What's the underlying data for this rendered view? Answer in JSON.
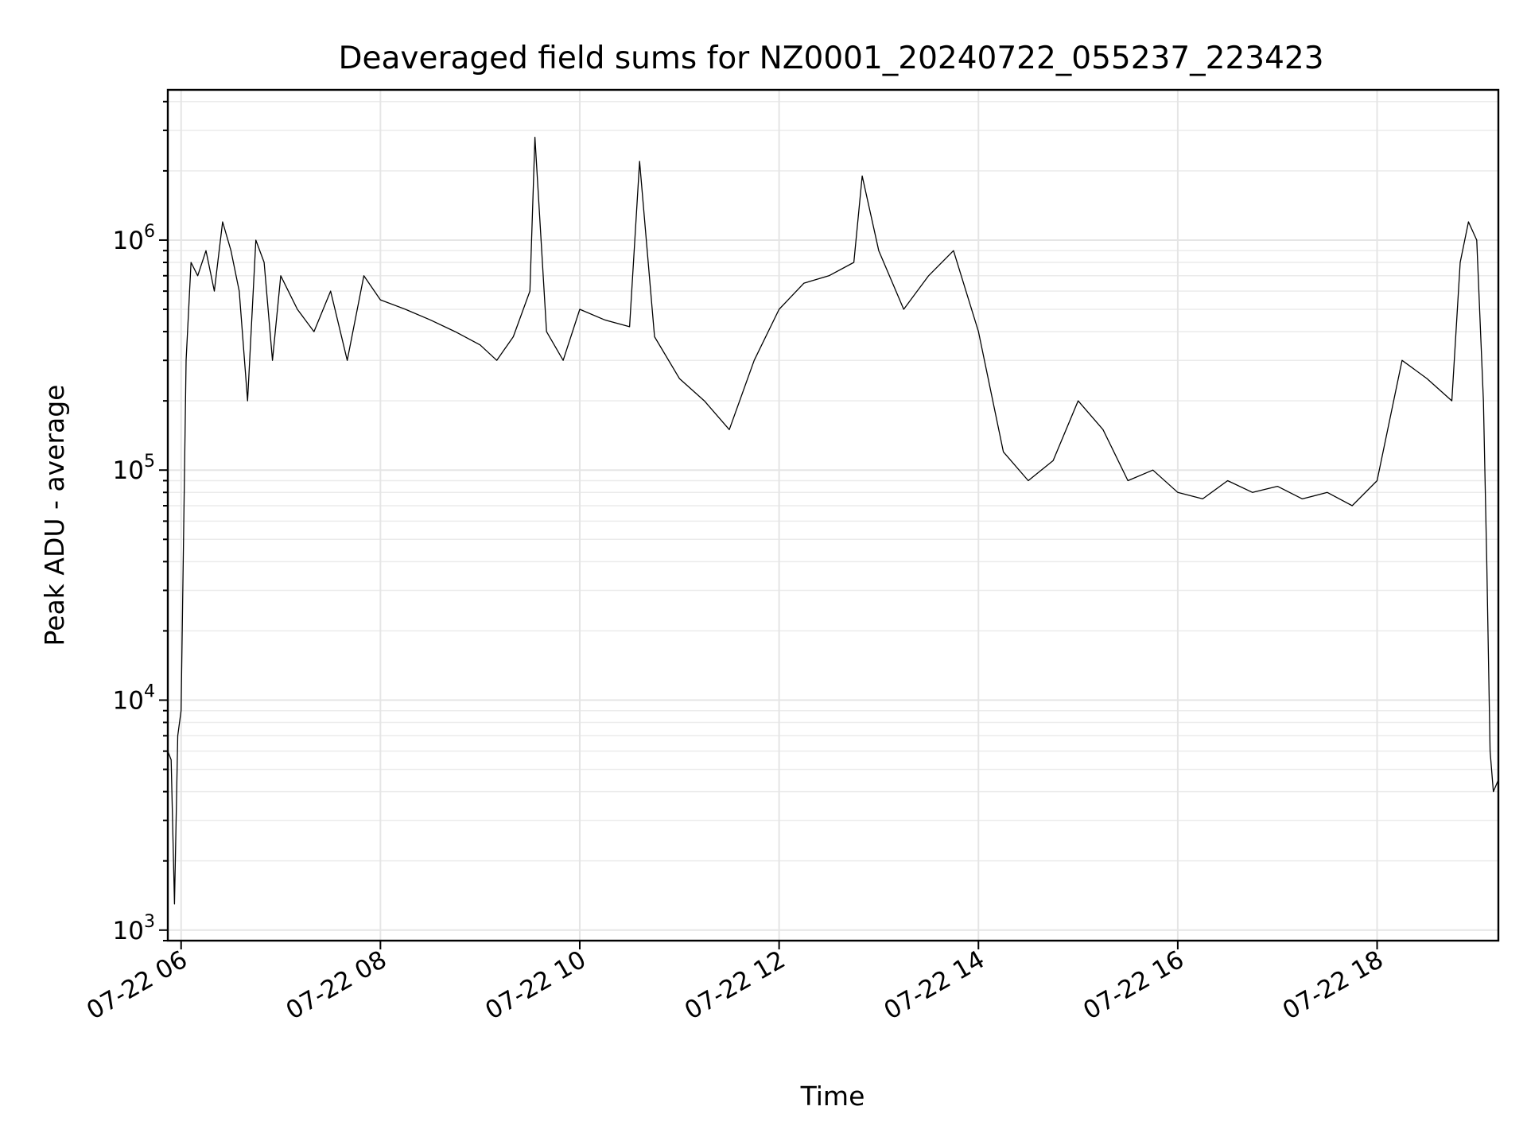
{
  "chart_data": {
    "type": "line",
    "title": "Deaveraged field sums for NZ0001_20240722_055237_223423",
    "xlabel": "Time",
    "ylabel": "Peak ADU - average",
    "yscale": "log",
    "xlim": [
      "2024-07-22 05:52",
      "2024-07-22 19:13"
    ],
    "ylim": [
      900,
      4500000
    ],
    "x_ticks": [
      "07-22 06",
      "07-22 08",
      "07-22 10",
      "07-22 12",
      "07-22 14",
      "07-22 16",
      "07-22 18"
    ],
    "y_ticks": [
      {
        "base": "10",
        "exp": "3",
        "value": 1000
      },
      {
        "base": "10",
        "exp": "4",
        "value": 10000
      },
      {
        "base": "10",
        "exp": "5",
        "value": 100000
      },
      {
        "base": "10",
        "exp": "6",
        "value": 1000000
      }
    ],
    "grid": true,
    "legend": "none",
    "line_color": "#000000",
    "series": [
      {
        "x": [
          "2024-07-22 05:52",
          "2024-07-22 05:54",
          "2024-07-22 05:56",
          "2024-07-22 05:58",
          "2024-07-22 06:00",
          "2024-07-22 06:03",
          "2024-07-22 06:06",
          "2024-07-22 06:10",
          "2024-07-22 06:15",
          "2024-07-22 06:20",
          "2024-07-22 06:25",
          "2024-07-22 06:30",
          "2024-07-22 06:35",
          "2024-07-22 06:40",
          "2024-07-22 06:45",
          "2024-07-22 06:50",
          "2024-07-22 06:55",
          "2024-07-22 07:00",
          "2024-07-22 07:10",
          "2024-07-22 07:20",
          "2024-07-22 07:30",
          "2024-07-22 07:40",
          "2024-07-22 07:50",
          "2024-07-22 08:00",
          "2024-07-22 08:15",
          "2024-07-22 08:30",
          "2024-07-22 08:45",
          "2024-07-22 09:00",
          "2024-07-22 09:10",
          "2024-07-22 09:20",
          "2024-07-22 09:30",
          "2024-07-22 09:33",
          "2024-07-22 09:40",
          "2024-07-22 09:50",
          "2024-07-22 10:00",
          "2024-07-22 10:15",
          "2024-07-22 10:30",
          "2024-07-22 10:36",
          "2024-07-22 10:45",
          "2024-07-22 11:00",
          "2024-07-22 11:15",
          "2024-07-22 11:30",
          "2024-07-22 11:45",
          "2024-07-22 12:00",
          "2024-07-22 12:15",
          "2024-07-22 12:30",
          "2024-07-22 12:45",
          "2024-07-22 12:50",
          "2024-07-22 13:00",
          "2024-07-22 13:15",
          "2024-07-22 13:30",
          "2024-07-22 13:45",
          "2024-07-22 14:00",
          "2024-07-22 14:15",
          "2024-07-22 14:30",
          "2024-07-22 14:45",
          "2024-07-22 15:00",
          "2024-07-22 15:15",
          "2024-07-22 15:30",
          "2024-07-22 15:45",
          "2024-07-22 16:00",
          "2024-07-22 16:15",
          "2024-07-22 16:30",
          "2024-07-22 16:45",
          "2024-07-22 17:00",
          "2024-07-22 17:15",
          "2024-07-22 17:30",
          "2024-07-22 17:45",
          "2024-07-22 18:00",
          "2024-07-22 18:15",
          "2024-07-22 18:30",
          "2024-07-22 18:45",
          "2024-07-22 18:50",
          "2024-07-22 18:55",
          "2024-07-22 19:00",
          "2024-07-22 19:04",
          "2024-07-22 19:06",
          "2024-07-22 19:08",
          "2024-07-22 19:10",
          "2024-07-22 19:13"
        ],
        "y": [
          6000,
          5500,
          1300,
          7000,
          9000,
          300000,
          800000,
          700000,
          900000,
          600000,
          1200000,
          900000,
          600000,
          200000,
          1000000,
          800000,
          300000,
          700000,
          500000,
          400000,
          600000,
          300000,
          700000,
          550000,
          500000,
          450000,
          400000,
          350000,
          300000,
          380000,
          600000,
          2800000,
          400000,
          300000,
          500000,
          450000,
          420000,
          2200000,
          380000,
          250000,
          200000,
          150000,
          300000,
          500000,
          650000,
          700000,
          800000,
          1900000,
          900000,
          500000,
          700000,
          900000,
          400000,
          120000,
          90000,
          110000,
          200000,
          150000,
          90000,
          100000,
          80000,
          75000,
          90000,
          80000,
          85000,
          75000,
          80000,
          70000,
          90000,
          300000,
          250000,
          200000,
          800000,
          1200000,
          1000000,
          200000,
          40000,
          6000,
          4000,
          4500
        ]
      }
    ]
  }
}
